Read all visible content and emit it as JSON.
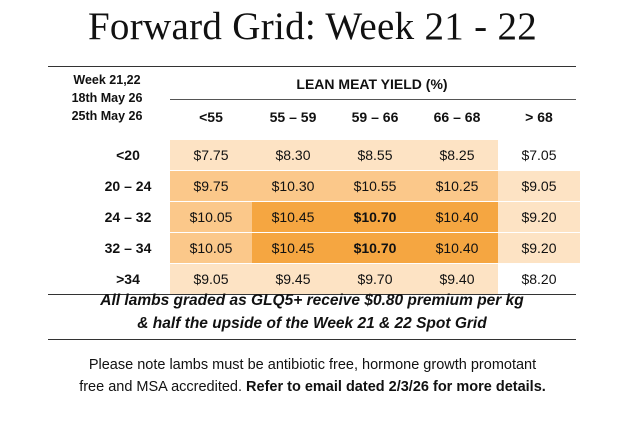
{
  "title": "Forward Grid: Week 21 - 22",
  "header": {
    "week_label": "Week 21,22",
    "date1": "18th May 26",
    "date2": "25th May 26",
    "group_label": "LEAN MEAT YIELD (%)",
    "columns": [
      "<55",
      "55 – 59",
      "59 – 66",
      "66 – 68",
      "> 68"
    ]
  },
  "rows": [
    {
      "label": "<20",
      "values": [
        "$7.75",
        "$8.30",
        "$8.55",
        "$8.25",
        "$7.05"
      ]
    },
    {
      "label": "20 – 24",
      "values": [
        "$9.75",
        "$10.30",
        "$10.55",
        "$10.25",
        "$9.05"
      ]
    },
    {
      "label": "24 – 32",
      "values": [
        "$10.05",
        "$10.45",
        "$10.70",
        "$10.40",
        "$9.20"
      ]
    },
    {
      "label": "32 – 34",
      "values": [
        "$10.05",
        "$10.45",
        "$10.70",
        "$10.40",
        "$9.20"
      ]
    },
    {
      "label": ">34",
      "values": [
        "$9.05",
        "$9.45",
        "$9.70",
        "$9.40",
        "$8.20"
      ]
    }
  ],
  "colors": {
    "light": "#fde3c4",
    "mid": "#fbc88a",
    "strong": "#f5a641"
  },
  "premium": {
    "line1": "All lambs graded as GLQ5+ receive $0.80 premium per kg",
    "line2": "& half the upside of the Week 21 & 22 Spot Grid"
  },
  "note": {
    "line1": "Please note lambs must be antibiotic free, hormone growth promotant",
    "line2_plain": "free and MSA accredited. ",
    "line2_bold": "Refer to email dated 2/3/26 for more details."
  }
}
